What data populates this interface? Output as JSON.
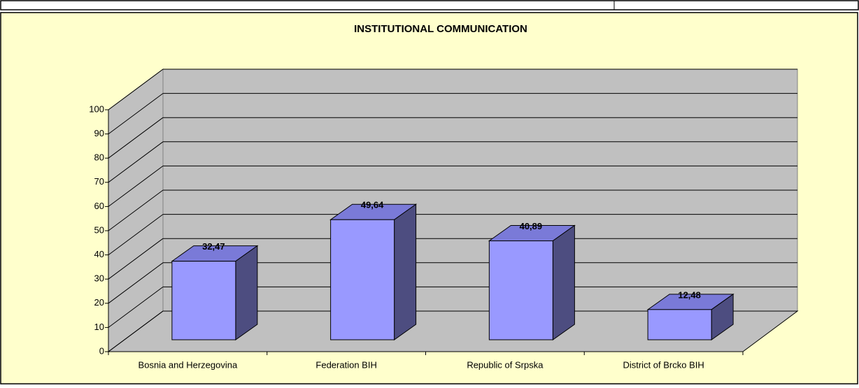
{
  "chart_data": {
    "type": "bar3d",
    "title": "INSTITUTIONAL COMMUNICATION",
    "categories": [
      "Bosnia and Herzegovina",
      "Federation BIH",
      "Republic of Srpska",
      "District of Brcko BIH"
    ],
    "values": [
      32.47,
      49.64,
      40.89,
      12.48
    ],
    "value_labels": [
      "32,47",
      "49,64",
      "40,89",
      "12,48"
    ],
    "color": "#9999ff",
    "ylim": [
      0,
      100
    ],
    "yticks": [
      0,
      10,
      20,
      30,
      40,
      50,
      60,
      70,
      80,
      90,
      100
    ],
    "grid": true
  }
}
